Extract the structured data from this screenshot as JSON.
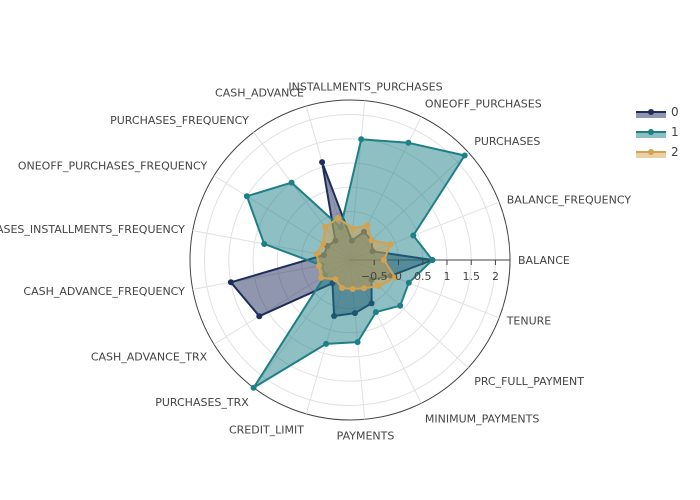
{
  "chart_data": {
    "type": "radar",
    "axes": [
      "BALANCE",
      "BALANCE_FREQUENCY",
      "PURCHASES",
      "ONEOFF_PURCHASES",
      "INSTALLMENTS_PURCHASES",
      "CASH_ADVANCE",
      "PURCHASES_FREQUENCY",
      "ONEOFF_PURCHASES_FREQUENCY",
      "PURCHASES_INSTALLMENTS_FREQUENCY",
      "CASH_ADVANCE_FREQUENCY",
      "CASH_ADVANCE_TRX",
      "PURCHASES_TRX",
      "CREDIT_LIMIT",
      "PAYMENTS",
      "MINIMUM_PAYMENTS",
      "PRC_FULL_PAYMENT",
      "TENURE"
    ],
    "radial_range": [
      -1,
      2.3
    ],
    "radial_ticks": [
      -0.5,
      0,
      0.5,
      1,
      1.5,
      2
    ],
    "tick_labels": [
      "−0.5",
      "0",
      "0.5",
      "1",
      "1.5",
      "2"
    ],
    "series": [
      {
        "name": "0",
        "color": "#1f2d5c",
        "values": [
          0.7,
          -0.5,
          -0.4,
          -0.35,
          -0.6,
          1.1,
          -0.5,
          -0.45,
          -0.45,
          1.5,
          1.2,
          -0.4,
          0.2,
          0.1,
          0.0,
          -0.4,
          -0.1
        ]
      },
      {
        "name": "1",
        "color": "#1e7f86",
        "values": [
          0.7,
          0.4,
          2.2,
          1.7,
          1.5,
          -0.3,
          1.0,
          1.5,
          0.8,
          -0.4,
          -0.4,
          2.3,
          0.8,
          0.7,
          0.2,
          0.4,
          0.3
        ]
      },
      {
        "name": "2",
        "color": "#d4a24e",
        "values": [
          -0.3,
          -0.1,
          -0.4,
          -0.2,
          -0.35,
          -0.1,
          -0.15,
          -0.35,
          -0.3,
          -0.35,
          -0.3,
          -0.5,
          -0.4,
          -0.4,
          -0.35,
          -0.2,
          0.0
        ]
      }
    ],
    "legend_position": "top-right"
  }
}
